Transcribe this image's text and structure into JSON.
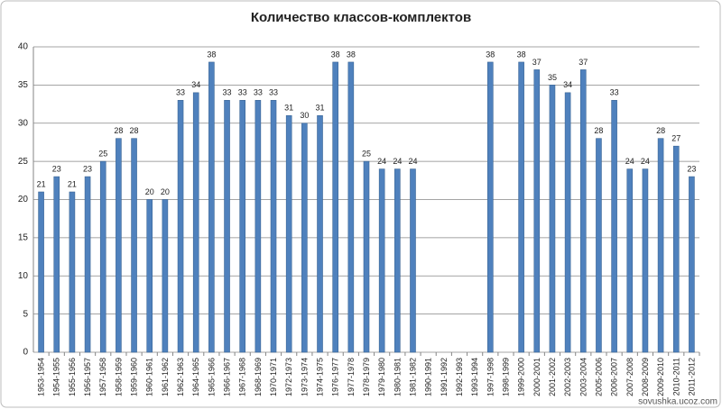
{
  "chart_data": {
    "type": "bar",
    "title": "Количество классов-комплектов",
    "categories": [
      "1953-1954",
      "1954-1955",
      "1955-1956",
      "1956-1957",
      "1957-1958",
      "1958-1959",
      "1959-1960",
      "1960-1961",
      "1961-1962",
      "1962-1963",
      "1964-1965",
      "1965-1966",
      "1966-1967",
      "1967-1968",
      "1968-1969",
      "1970-1971",
      "1972-1973",
      "1973-1974",
      "1974-1975",
      "1976-1977",
      "1977-1978",
      "1978-1979",
      "1979-1980",
      "1980-1981",
      "1981-1982",
      "1990-1991",
      "1991-1992",
      "1992-1993",
      "1993-1994",
      "1997-1998",
      "1998-1999",
      "1999-2000",
      "2000-2001",
      "2001-2002",
      "2002-2003",
      "2003-2004",
      "2005-2006",
      "2006-2007",
      "2007-2008",
      "2008-2009",
      "2009-2010",
      "2010-2011",
      "2011-2012"
    ],
    "values": [
      21,
      23,
      21,
      23,
      25,
      28,
      28,
      20,
      20,
      33,
      34,
      38,
      33,
      33,
      33,
      33,
      31,
      30,
      31,
      38,
      38,
      25,
      24,
      24,
      24,
      null,
      null,
      null,
      null,
      38,
      null,
      38,
      37,
      35,
      34,
      37,
      28,
      33,
      24,
      24,
      28,
      27,
      23
    ],
    "color": "#4f81bd",
    "ylim": [
      0,
      40
    ],
    "yticks": [
      0,
      5,
      10,
      15,
      20,
      25,
      30,
      35,
      40
    ],
    "grid": true,
    "watermark": "sovushka.ucoz.com"
  }
}
